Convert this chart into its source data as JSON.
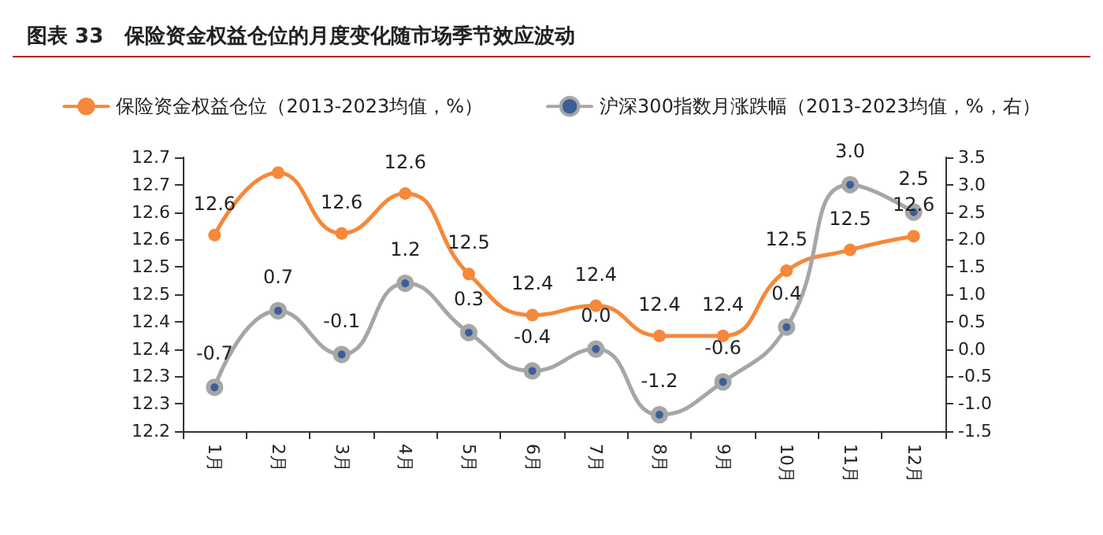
{
  "chart_data": {
    "type": "line",
    "title": "图表 33   保险资金权益仓位的月度变化随市场季节效应波动",
    "categories": [
      "1月",
      "2月",
      "3月",
      "4月",
      "5月",
      "6月",
      "7月",
      "8月",
      "9月",
      "10月",
      "11月",
      "12月"
    ],
    "series": [
      {
        "name": "保险资金权益仓位（2013-2023均值，%）",
        "color": "#f5883a",
        "values": [
          12.558,
          12.672,
          12.561,
          12.634,
          12.487,
          12.412,
          12.429,
          12.374,
          12.374,
          12.493,
          12.531,
          12.556
        ],
        "value_labels": [
          "12.6",
          null,
          "12.6",
          "12.6",
          "12.5",
          "12.4",
          "12.4",
          "12.4",
          "12.4",
          "12.5",
          "12.5",
          "12.6"
        ]
      },
      {
        "name": "沪深300指数月涨跌幅（2013-2023均值，%，右）",
        "color": "#a6a6a6",
        "axis": "y2",
        "values": [
          -0.7,
          0.7,
          -0.1,
          1.2,
          0.3,
          -0.4,
          0.0,
          -1.2,
          -0.6,
          0.4,
          3.0,
          2.5
        ],
        "value_labels": [
          "-0.7",
          "0.7",
          "-0.1",
          "1.2",
          "0.3",
          "-0.4",
          "0.0",
          "-1.2",
          "-0.6",
          "0.4",
          "3.0",
          "2.5"
        ]
      }
    ],
    "ylim": [
      12.2,
      12.7
    ],
    "yticks": [
      12.2,
      {
        "value": 12.25,
        "label": "12.3"
      },
      12.3,
      {
        "value": 12.35,
        "label": "12.4"
      },
      12.4,
      {
        "value": 12.45,
        "label": "12.5"
      },
      12.5,
      {
        "value": 12.55,
        "label": "12.6"
      },
      12.6,
      {
        "value": 12.65,
        "label": "12.7"
      },
      12.7
    ],
    "y2lim": [
      -1.5,
      3.5
    ],
    "y2ticks": [
      {
        "value": -1.5,
        "label": "-1.5"
      },
      {
        "value": -1,
        "label": "-1.0"
      },
      {
        "value": -0.5,
        "label": "-0.5"
      },
      {
        "value": 0,
        "label": "0.0"
      },
      {
        "value": 0.5,
        "label": "0.5"
      },
      {
        "value": 1,
        "label": "1.0"
      },
      {
        "value": 1.5,
        "label": "1.5"
      },
      {
        "value": 2,
        "label": "2.0"
      },
      {
        "value": 2.5,
        "label": "2.5"
      },
      {
        "value": 3,
        "label": "3.0"
      },
      {
        "value": 3.5,
        "label": "3.5"
      }
    ],
    "marker": "circle",
    "line_style": "solid",
    "grid": false,
    "legend": "top"
  }
}
